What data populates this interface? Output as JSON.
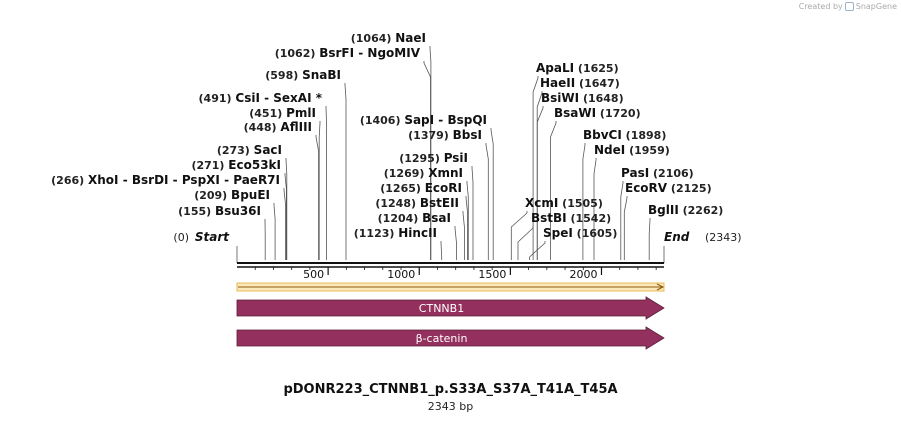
{
  "credit": {
    "prefix": "Created by",
    "brand": "SnapGene"
  },
  "plasmid": {
    "name": "pDONR223_CTNNB1_p.S33A_S37A_T41A_T45A",
    "length_label": "2343 bp",
    "length": 2343
  },
  "endpoints": [
    {
      "name": "Start",
      "pos_label": "(0)",
      "bp": 0
    },
    {
      "name": "End",
      "pos_label": "(2343)",
      "bp": 2343
    }
  ],
  "ruler": {
    "ticks": [
      500,
      1000,
      1500,
      2000
    ]
  },
  "features": [
    {
      "label": "CTNNB1",
      "color": "#94305e"
    },
    {
      "label": "β-catenin",
      "color": "#94305e"
    }
  ],
  "sites": [
    {
      "bp": 155,
      "pos_label": "(155)",
      "names": [
        "Bsu36I"
      ],
      "side": "left"
    },
    {
      "bp": 209,
      "pos_label": "(209)",
      "names": [
        "BpuEI"
      ],
      "side": "left"
    },
    {
      "bp": 266,
      "pos_label": "(266)",
      "names": [
        "XhoI",
        "BsrDI",
        "PspXI",
        "PaeR7I"
      ],
      "side": "left"
    },
    {
      "bp": 271,
      "pos_label": "(271)",
      "names": [
        "Eco53kI"
      ],
      "side": "left"
    },
    {
      "bp": 273,
      "pos_label": "(273)",
      "names": [
        "SacI"
      ],
      "side": "left"
    },
    {
      "bp": 448,
      "pos_label": "(448)",
      "names": [
        "AflIII"
      ],
      "side": "left"
    },
    {
      "bp": 451,
      "pos_label": "(451)",
      "names": [
        "PmlI"
      ],
      "side": "left"
    },
    {
      "bp": 491,
      "pos_label": "(491)",
      "names": [
        "CsiI",
        "SexAI *"
      ],
      "side": "left"
    },
    {
      "bp": 598,
      "pos_label": "(598)",
      "names": [
        "SnaBI"
      ],
      "side": "left"
    },
    {
      "bp": 1062,
      "pos_label": "(1062)",
      "names": [
        "BsrFI",
        "NgoMIV"
      ],
      "side": "left"
    },
    {
      "bp": 1064,
      "pos_label": "(1064)",
      "names": [
        "NaeI"
      ],
      "side": "left"
    },
    {
      "bp": 1123,
      "pos_label": "(1123)",
      "names": [
        "HincII"
      ],
      "side": "left"
    },
    {
      "bp": 1204,
      "pos_label": "(1204)",
      "names": [
        "BsaI"
      ],
      "side": "left"
    },
    {
      "bp": 1248,
      "pos_label": "(1248)",
      "names": [
        "BstEII"
      ],
      "side": "left"
    },
    {
      "bp": 1265,
      "pos_label": "(1265)",
      "names": [
        "EcoRI"
      ],
      "side": "left"
    },
    {
      "bp": 1269,
      "pos_label": "(1269)",
      "names": [
        "XmnI"
      ],
      "side": "left"
    },
    {
      "bp": 1295,
      "pos_label": "(1295)",
      "names": [
        "PsiI"
      ],
      "side": "left"
    },
    {
      "bp": 1379,
      "pos_label": "(1379)",
      "names": [
        "BbsI"
      ],
      "side": "left"
    },
    {
      "bp": 1406,
      "pos_label": "(1406)",
      "names": [
        "SapI",
        "BspQI"
      ],
      "side": "left"
    },
    {
      "bp": 1505,
      "pos_label": "(1505)",
      "names": [
        "XcmI"
      ],
      "side": "right"
    },
    {
      "bp": 1542,
      "pos_label": "(1542)",
      "names": [
        "BstBI"
      ],
      "side": "right"
    },
    {
      "bp": 1605,
      "pos_label": "(1605)",
      "names": [
        "SpeI"
      ],
      "side": "right"
    },
    {
      "bp": 1625,
      "pos_label": "(1625)",
      "names": [
        "ApaLI"
      ],
      "side": "right"
    },
    {
      "bp": 1647,
      "pos_label": "(1647)",
      "names": [
        "HaeII"
      ],
      "side": "right"
    },
    {
      "bp": 1648,
      "pos_label": "(1648)",
      "names": [
        "BsiWI"
      ],
      "side": "right"
    },
    {
      "bp": 1720,
      "pos_label": "(1720)",
      "names": [
        "BsaWI"
      ],
      "side": "right"
    },
    {
      "bp": 1898,
      "pos_label": "(1898)",
      "names": [
        "BbvCI"
      ],
      "side": "right"
    },
    {
      "bp": 1959,
      "pos_label": "(1959)",
      "names": [
        "NdeI"
      ],
      "side": "right"
    },
    {
      "bp": 2106,
      "pos_label": "(2106)",
      "names": [
        "PasI"
      ],
      "side": "right"
    },
    {
      "bp": 2125,
      "pos_label": "(2125)",
      "names": [
        "EcoRV"
      ],
      "side": "right"
    },
    {
      "bp": 2262,
      "pos_label": "(2262)",
      "names": [
        "BglII"
      ],
      "side": "right"
    }
  ]
}
